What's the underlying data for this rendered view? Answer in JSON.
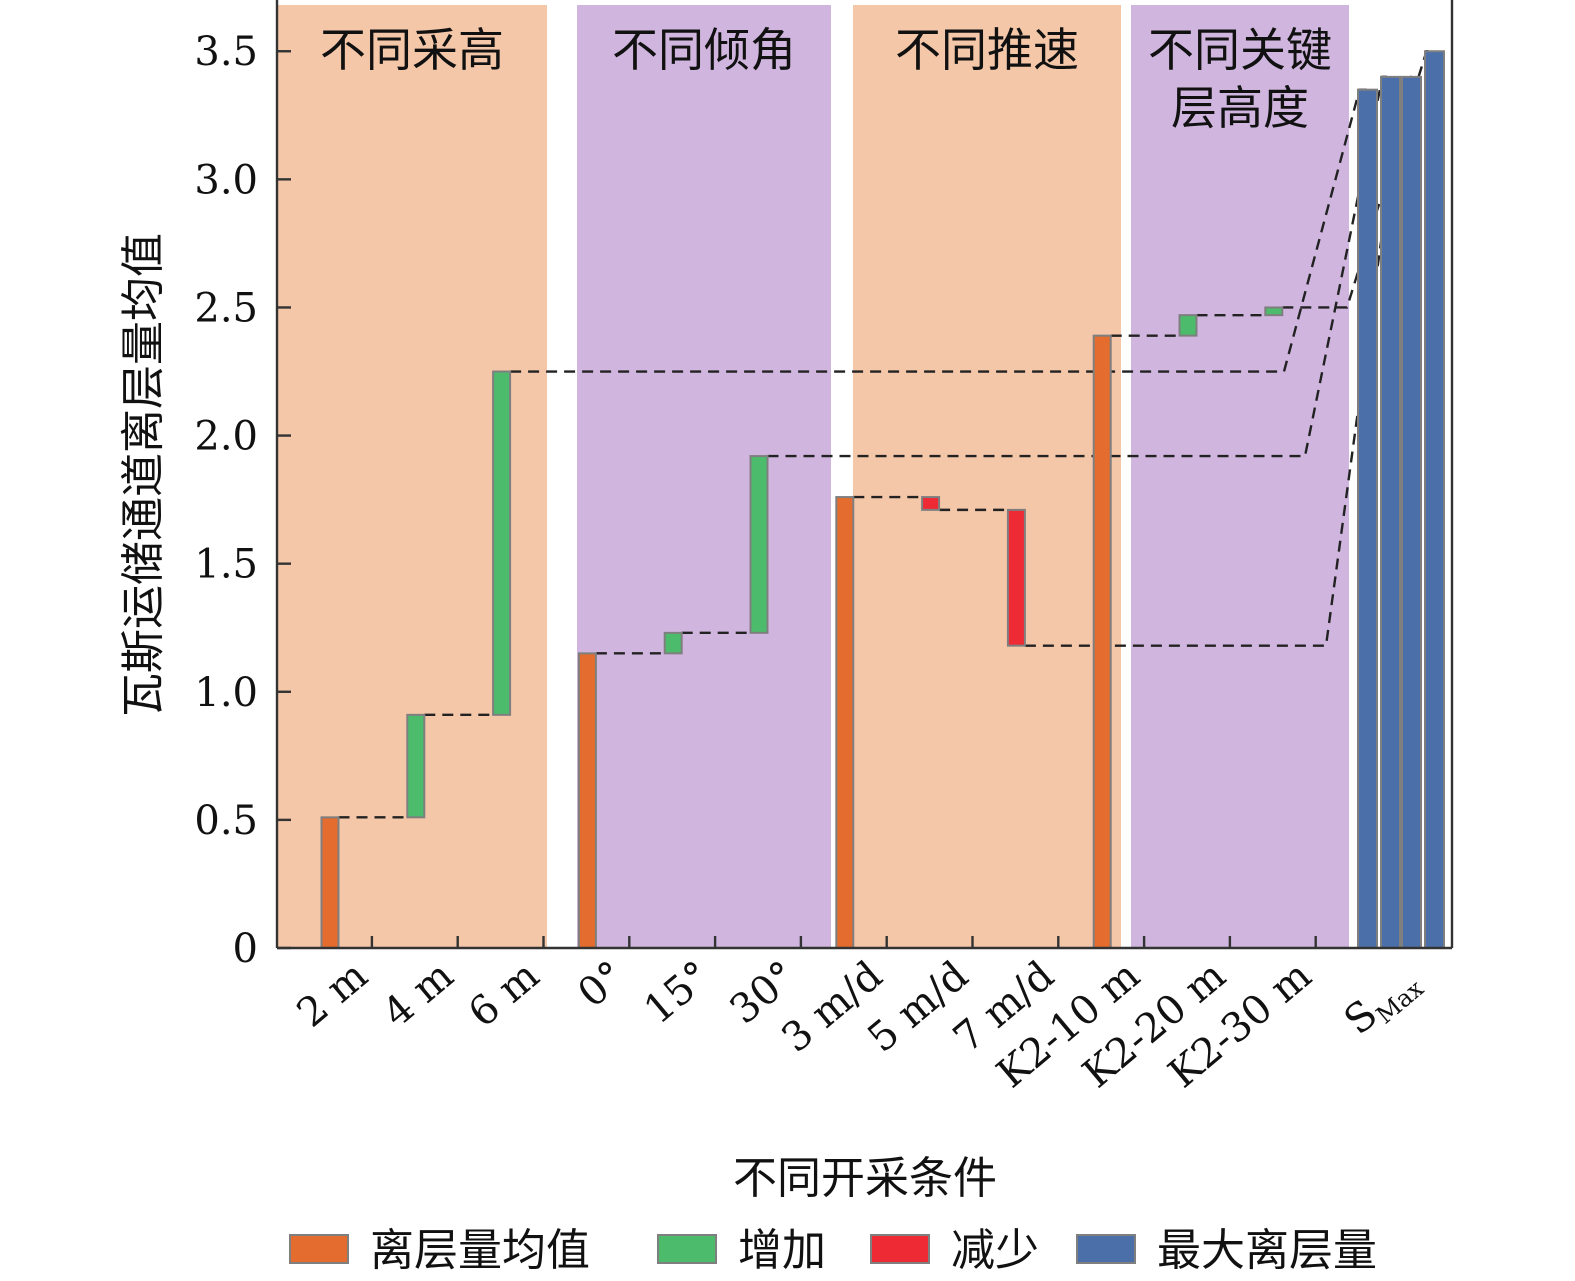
{
  "chart_data": {
    "type": "bar",
    "subtype": "waterfall",
    "xlabel": "不同开采条件",
    "ylabel": "瓦斯运储通道离层量均值",
    "ylim": [
      0,
      3.7
    ],
    "yticks": [
      "0",
      "0.5",
      "1.0",
      "1.5",
      "2.0",
      "2.5",
      "3.0",
      "3.5"
    ],
    "ytick_values": [
      0,
      0.5,
      1.0,
      1.5,
      2.0,
      2.5,
      3.0,
      3.5
    ],
    "categories": [
      "2 m",
      "4 m",
      "6 m",
      "0°",
      "15°",
      "30°",
      "3 m/d",
      "5 m/d",
      "7 m/d",
      "K2-10 m",
      "K2-20 m",
      "K2-30 m"
    ],
    "smax_label": {
      "main": "S",
      "sub": "Max"
    },
    "regions": [
      {
        "title_lines": [
          "不同采高"
        ],
        "color": "#f5c7a9",
        "from_cat": 0,
        "to_cat": 2
      },
      {
        "title_lines": [
          "不同倾角"
        ],
        "color": "#d0b6df",
        "from_cat": 3,
        "to_cat": 5
      },
      {
        "title_lines": [
          "不同推速"
        ],
        "color": "#f5c7a9",
        "from_cat": 6,
        "to_cat": 8
      },
      {
        "title_lines": [
          "不同关键",
          "层高度"
        ],
        "color": "#d0b6df",
        "from_cat": 9,
        "to_cat": 11
      }
    ],
    "bars": [
      {
        "category": "2 m",
        "kind": "base",
        "start": 0,
        "end": 0.51
      },
      {
        "category": "4 m",
        "kind": "increase",
        "start": 0.51,
        "end": 0.91
      },
      {
        "category": "6 m",
        "kind": "increase",
        "start": 0.91,
        "end": 2.25
      },
      {
        "category": "0°",
        "kind": "base",
        "start": 0,
        "end": 1.15
      },
      {
        "category": "15°",
        "kind": "increase",
        "start": 1.15,
        "end": 1.23
      },
      {
        "category": "30°",
        "kind": "increase",
        "start": 1.23,
        "end": 1.92
      },
      {
        "category": "3 m/d",
        "kind": "base",
        "start": 0,
        "end": 1.76
      },
      {
        "category": "5 m/d",
        "kind": "decrease",
        "start": 1.76,
        "end": 1.71
      },
      {
        "category": "7 m/d",
        "kind": "decrease",
        "start": 1.71,
        "end": 1.18
      },
      {
        "category": "K2-10 m",
        "kind": "base",
        "start": 0,
        "end": 2.39
      },
      {
        "category": "K2-20 m",
        "kind": "increase",
        "start": 2.39,
        "end": 2.47
      },
      {
        "category": "K2-30 m",
        "kind": "increase",
        "start": 2.47,
        "end": 2.5
      }
    ],
    "smax_values": [
      3.35,
      3.4,
      3.4,
      3.5
    ],
    "legend": [
      {
        "label": "离层量均值",
        "kind": "base",
        "color": "#e46c2e"
      },
      {
        "label": "增加",
        "kind": "increase",
        "color": "#4cbb6c"
      },
      {
        "label": "减少",
        "kind": "decrease",
        "color": "#ee2a35"
      },
      {
        "label": "最大离层量",
        "kind": "max",
        "color": "#4a6fa9"
      }
    ],
    "colors": {
      "base": "#e46c2e",
      "increase": "#4cbb6c",
      "decrease": "#ee2a35",
      "max": "#4a6fa9",
      "bar_edge": "#7f7f7f",
      "axis": "#333333",
      "dash": "#222222"
    },
    "legend_placement": "bottom",
    "grid": false
  }
}
